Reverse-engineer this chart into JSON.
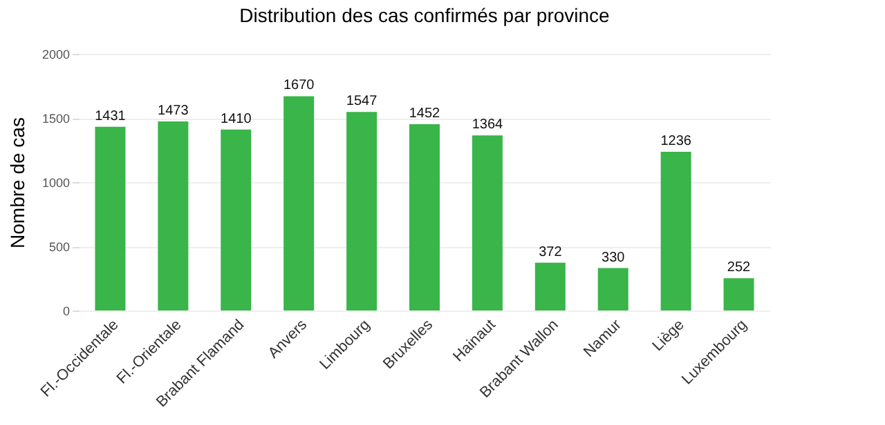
{
  "chart_data": {
    "type": "bar",
    "title": "Distribution des cas confirmés par province",
    "ylabel": "Nombre de cas",
    "categories": [
      "Fl.-Occidentale",
      "Fl.-Orientale",
      "Brabant Flamand",
      "Anvers",
      "Limbourg",
      "Bruxelles",
      "Hainaut",
      "Brabant Wallon",
      "Namur",
      "Liège",
      "Luxembourg"
    ],
    "values": [
      1431,
      1473,
      1410,
      1670,
      1547,
      1452,
      1364,
      372,
      330,
      1236,
      252
    ],
    "color": "#39b54a",
    "ylim": [
      0,
      2000
    ],
    "yticks": [
      0,
      500,
      1000,
      1500,
      2000
    ],
    "grid": "y",
    "data_labels": true
  }
}
